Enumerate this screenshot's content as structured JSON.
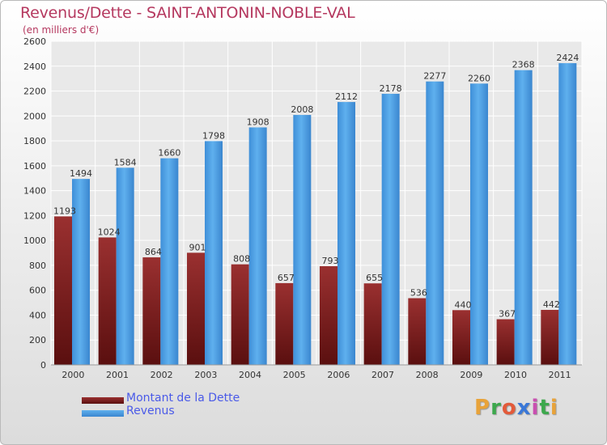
{
  "header": {
    "title": "Revenus/Dette - SAINT-ANTONIN-NOBLE-VAL",
    "subtitle": "(en milliers d'€)"
  },
  "brand": {
    "text": "Proxiti",
    "colors": [
      "#e8a33a",
      "#3da84d",
      "#e35a3a",
      "#3a78d8",
      "#c94fb0",
      "#3da84d",
      "#e8a33a"
    ]
  },
  "colors": {
    "debt": "#8c2a2a",
    "revenue": "#4aa2e6",
    "title": "#b5385f",
    "legend_text": "#4a5ae8"
  },
  "chart_data": {
    "type": "bar",
    "title": "Revenus/Dette - SAINT-ANTONIN-NOBLE-VAL",
    "subtitle": "(en milliers d'€)",
    "categories": [
      "2000",
      "2001",
      "2002",
      "2003",
      "2004",
      "2005",
      "2006",
      "2007",
      "2008",
      "2009",
      "2010",
      "2011"
    ],
    "series": [
      {
        "name": "Montant de la Dette",
        "values": [
          1193,
          1024,
          864,
          901,
          808,
          657,
          793,
          655,
          536,
          440,
          367,
          442
        ]
      },
      {
        "name": "Revenus",
        "values": [
          1494,
          1584,
          1660,
          1798,
          1908,
          2008,
          2112,
          2178,
          2277,
          2260,
          2368,
          2424
        ]
      }
    ],
    "yticks": [
      0,
      200,
      400,
      600,
      800,
      1000,
      1200,
      1400,
      1600,
      1800,
      2000,
      2200,
      2400,
      2600
    ],
    "ylim": [
      0,
      2600
    ],
    "grid": true,
    "legend_position": "bottom-left"
  }
}
